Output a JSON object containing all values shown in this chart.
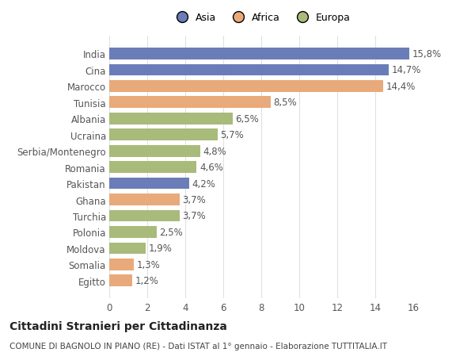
{
  "categories": [
    "Egitto",
    "Somalia",
    "Moldova",
    "Polonia",
    "Turchia",
    "Ghana",
    "Pakistan",
    "Romania",
    "Serbia/Montenegro",
    "Ucraina",
    "Albania",
    "Tunisia",
    "Marocco",
    "Cina",
    "India"
  ],
  "values": [
    1.2,
    1.3,
    1.9,
    2.5,
    3.7,
    3.7,
    4.2,
    4.6,
    4.8,
    5.7,
    6.5,
    8.5,
    14.4,
    14.7,
    15.8
  ],
  "continents": [
    "Africa",
    "Africa",
    "Europa",
    "Europa",
    "Europa",
    "Africa",
    "Asia",
    "Europa",
    "Europa",
    "Europa",
    "Europa",
    "Africa",
    "Africa",
    "Asia",
    "Asia"
  ],
  "colors": {
    "Asia": "#6b7db8",
    "Africa": "#e8aa7a",
    "Europa": "#a8bb7a"
  },
  "legend_labels": [
    "Asia",
    "Africa",
    "Europa"
  ],
  "legend_colors": [
    "#6b7db8",
    "#e8aa7a",
    "#a8bb7a"
  ],
  "xlim": [
    0,
    16
  ],
  "xticks": [
    0,
    2,
    4,
    6,
    8,
    10,
    12,
    14,
    16
  ],
  "title1": "Cittadini Stranieri per Cittadinanza",
  "title2": "COMUNE DI BAGNOLO IN PIANO (RE) - Dati ISTAT al 1° gennaio - Elaborazione TUTTITALIA.IT",
  "bar_height": 0.72,
  "background_color": "#ffffff",
  "grid_color": "#e0e0e0",
  "label_fontsize": 8.5,
  "value_fontsize": 8.5,
  "title1_fontsize": 10,
  "title2_fontsize": 7.5
}
